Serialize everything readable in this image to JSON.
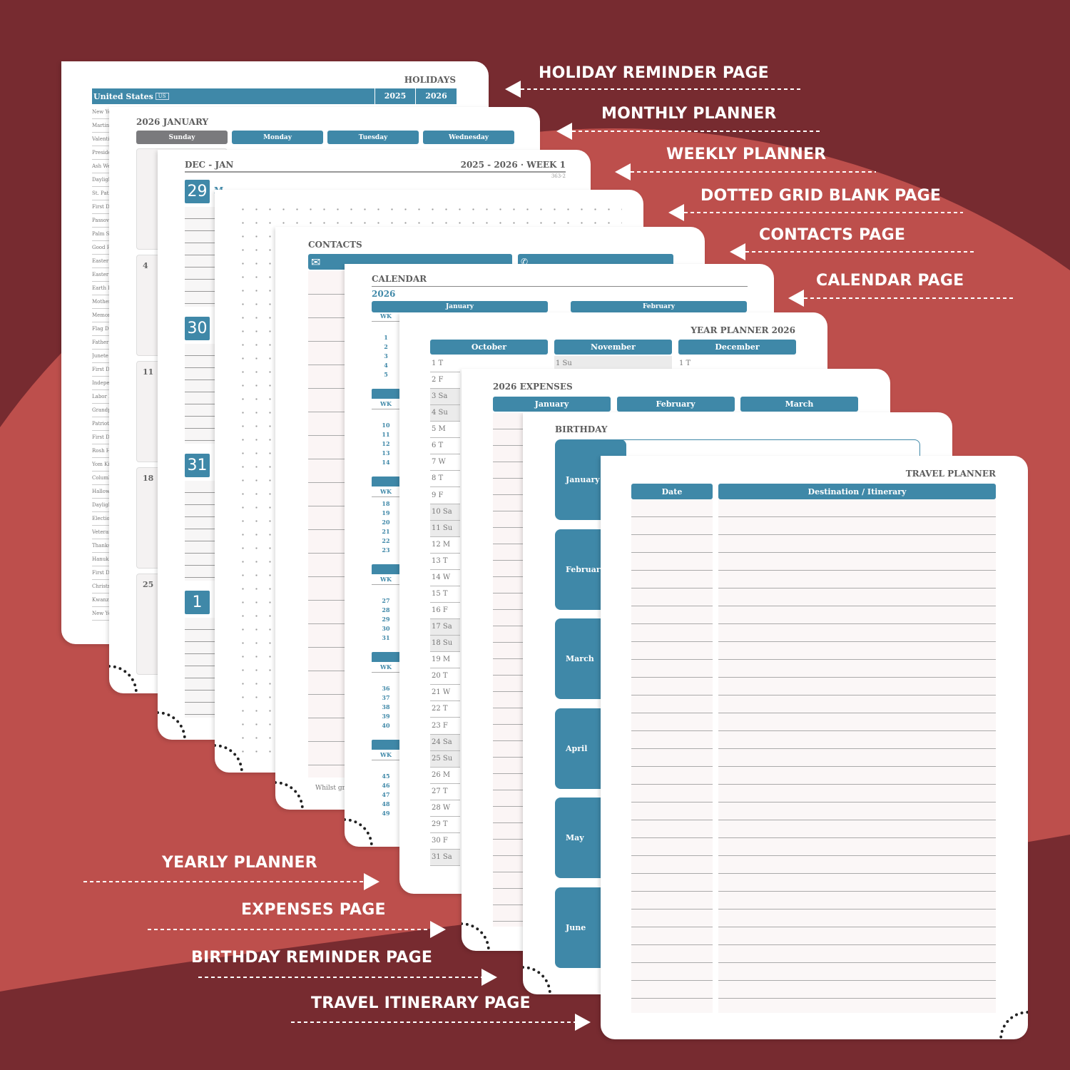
{
  "colors": {
    "background": "#772b30",
    "background_light": "#bd4f4c",
    "accent": "#3f88a8",
    "gray_header": "#7a7a7d"
  },
  "labels": {
    "holiday": "HOLIDAY REMINDER PAGE",
    "monthly": "MONTHLY PLANNER",
    "weekly": "WEEKLY PLANNER",
    "dotted": "DOTTED GRID BLANK PAGE",
    "contacts": "CONTACTS PAGE",
    "calendar": "CALENDAR PAGE",
    "yearly": "YEARLY PLANNER",
    "expenses": "EXPENSES PAGE",
    "birthday": "BIRTHDAY REMINDER PAGE",
    "travel": "TRAVEL ITINERARY PAGE"
  },
  "holiday_page": {
    "title": "HOLIDAYS",
    "country": "United States",
    "country_code": "US",
    "years": [
      "2025",
      "2026"
    ],
    "items": [
      "New Yea",
      "Martin",
      "Valenti",
      "Preside",
      "Ash We",
      "Dayligh",
      "St. Patr",
      "First D",
      "Passov",
      "Palm Su",
      "Good F",
      "Easter S",
      "Easter",
      "Earth D",
      "Mother",
      "Memor",
      "Flag Da",
      "Father",
      "Junete",
      "First D",
      "Indepe",
      "Labor D",
      "Grandp",
      "Patriot",
      "First D",
      "Rosh H",
      "Yom Ki",
      "Columb",
      "Hallow",
      "Dayligh",
      "Electio",
      "Veteran",
      "Thanks",
      "Hanukk",
      "First D",
      "Christm",
      "Kwanza",
      "New Ye"
    ]
  },
  "monthly_page": {
    "title": "2026 JANUARY",
    "days": [
      "Sunday",
      "Monday",
      "Tuesday",
      "Wednesday"
    ],
    "dates": [
      "",
      "4",
      "11",
      "18",
      "25"
    ]
  },
  "weekly_page": {
    "range": "DEC - JAN",
    "week": "2025 - 2026 · WEEK 1",
    "day_count": "363-2",
    "days": [
      "29",
      "30",
      "31",
      "1"
    ],
    "first_day_letter": "M"
  },
  "contacts_page": {
    "title": "CONTACTS",
    "footer_text": "Whilst grea",
    "icons": [
      "mail-icon",
      "phone-icon"
    ]
  },
  "calendar_page": {
    "title": "CALENDAR",
    "year": "2026",
    "months": [
      "January",
      "February"
    ],
    "wk_label": "WK",
    "week_groups": [
      [
        "1",
        "2",
        "3",
        "4",
        "5"
      ],
      [
        "10",
        "11",
        "12",
        "13",
        "14"
      ],
      [
        "18",
        "19",
        "20",
        "21",
        "22",
        "23"
      ],
      [
        "27",
        "28",
        "29",
        "30",
        "31"
      ],
      [
        "36",
        "37",
        "38",
        "39",
        "40"
      ],
      [
        "45",
        "46",
        "47",
        "48",
        "49"
      ]
    ]
  },
  "year_page": {
    "title": "YEAR PLANNER 2026",
    "months": [
      "October",
      "November",
      "December"
    ],
    "october_days": [
      "1 T",
      "2 F",
      "3 Sa",
      "4 Su",
      "5 M",
      "6 T",
      "7 W",
      "8 T",
      "9 F",
      "10 Sa",
      "11 Su",
      "12 M",
      "13 T",
      "14 W",
      "15 T",
      "16 F",
      "17 Sa",
      "18 Su",
      "19 M",
      "20 T",
      "21 W",
      "22 T",
      "23 F",
      "24 Sa",
      "25 Su",
      "26 M",
      "27 T",
      "28 W",
      "29 T",
      "30 F",
      "31 Sa"
    ],
    "november_first": "1 Su",
    "december_first": "1 T"
  },
  "expenses_page": {
    "title": "2026 EXPENSES",
    "months": [
      "January",
      "February",
      "March"
    ]
  },
  "birthday_page": {
    "title": "BIRTHDAY",
    "months": [
      "January",
      "February",
      "March",
      "April",
      "May",
      "June"
    ]
  },
  "travel_page": {
    "title": "TRAVEL PLANNER",
    "columns": [
      "Date",
      "Destination / Itinerary"
    ]
  }
}
